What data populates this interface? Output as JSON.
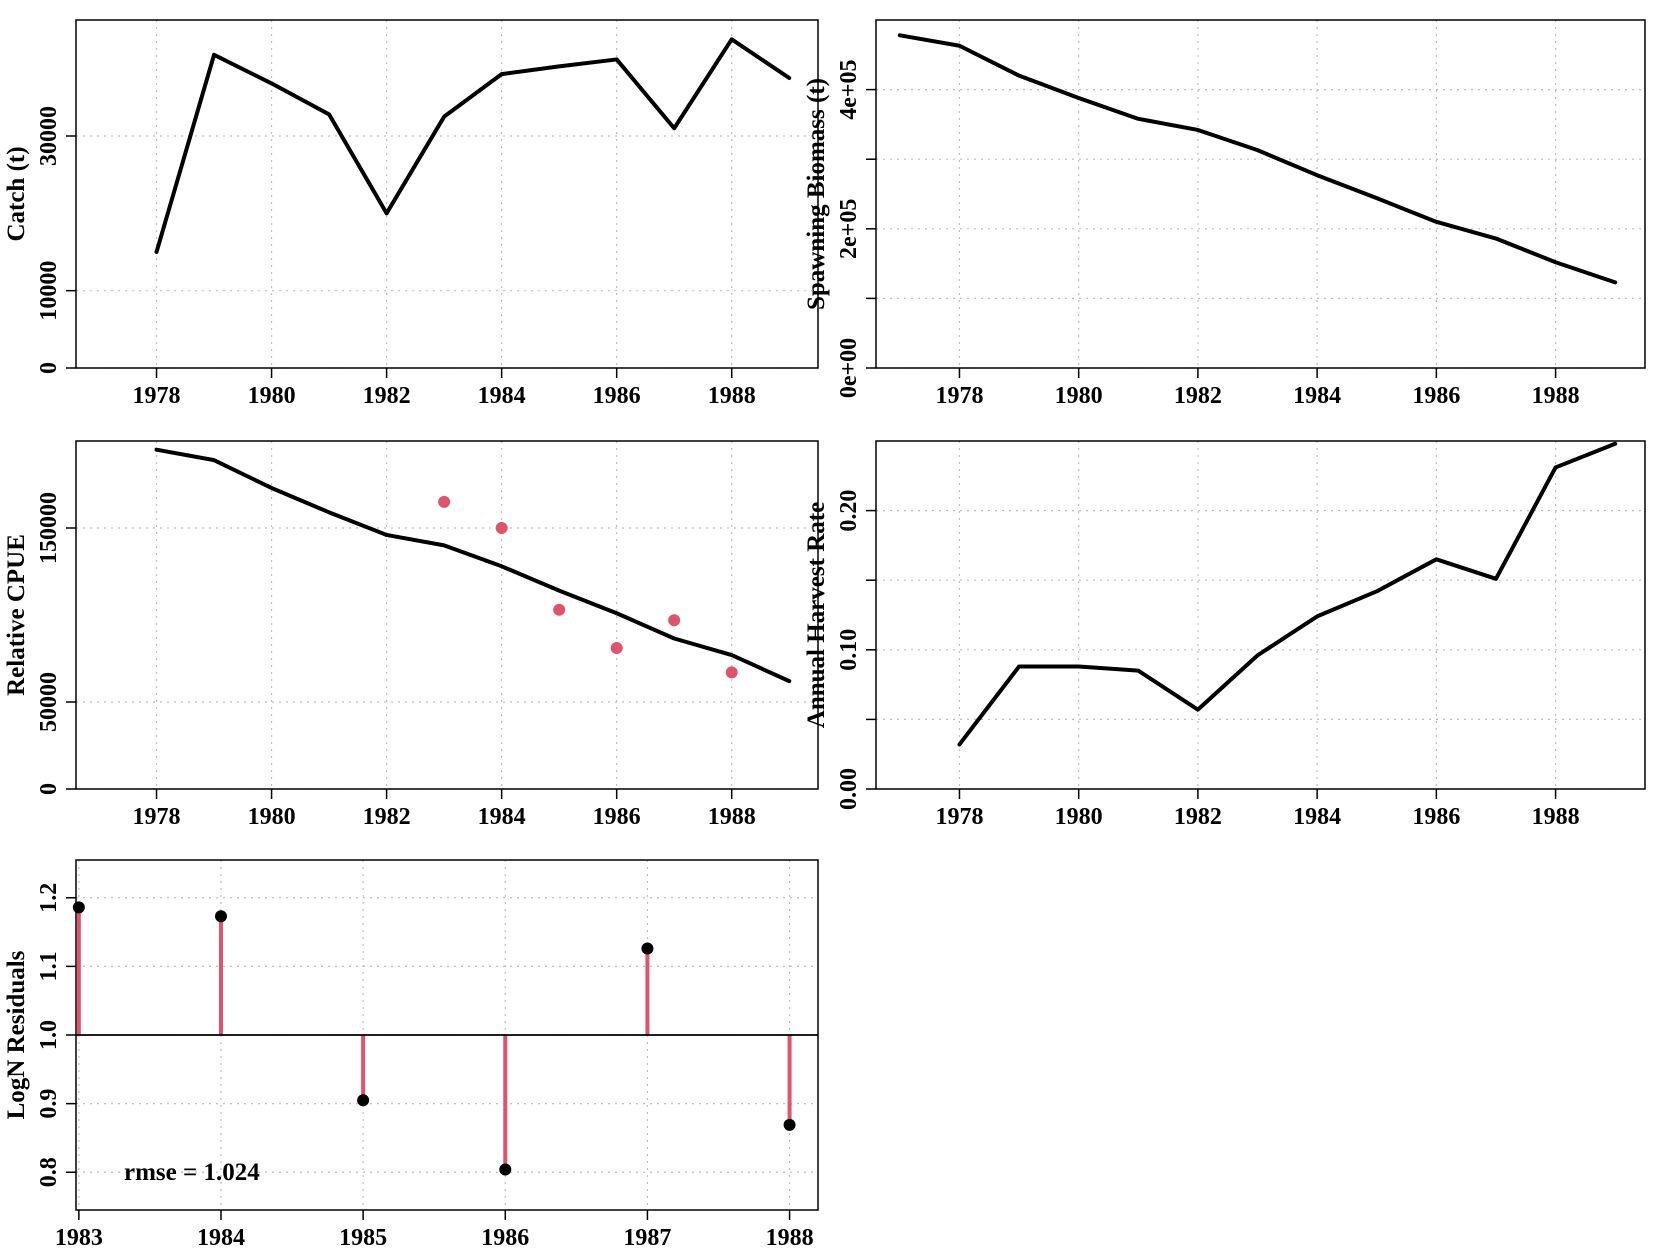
{
  "colors": {
    "line": "#000000",
    "accent": "#DF536B",
    "grid": "#BEBEBE",
    "point": "#000000"
  },
  "chart_data": [
    {
      "id": "catch",
      "type": "line",
      "ylabel": "Catch (t)",
      "xlabel": "",
      "title": "",
      "x": [
        1978,
        1979,
        1980,
        1981,
        1982,
        1983,
        1984,
        1985,
        1986,
        1987,
        1988,
        1989
      ],
      "series": [
        {
          "values": [
            15000,
            40500,
            36800,
            32800,
            20000,
            32500,
            38000,
            39000,
            39900,
            31000,
            42500,
            37500
          ]
        }
      ],
      "xlim": [
        1976.6,
        1989.5
      ],
      "ylim": [
        0,
        45000
      ],
      "xticks": [
        1978,
        1980,
        1982,
        1984,
        1986,
        1988
      ],
      "yticks": [
        0,
        10000,
        30000
      ],
      "ytick_labels": [
        "0",
        "10000",
        "30000"
      ],
      "grid": true
    },
    {
      "id": "spawning-biomass",
      "type": "line",
      "ylabel": "Spawning Biomass (t)",
      "xlabel": "",
      "title": "",
      "x": [
        1977,
        1978,
        1979,
        1980,
        1981,
        1982,
        1983,
        1984,
        1985,
        1986,
        1987,
        1988,
        1989
      ],
      "series": [
        {
          "values": [
            478000,
            463000,
            420000,
            388000,
            358000,
            342000,
            313000,
            277000,
            244000,
            210000,
            186000,
            152000,
            123000
          ]
        }
      ],
      "xlim": [
        1976.6,
        1989.5
      ],
      "ylim": [
        0,
        500000
      ],
      "xticks": [
        1978,
        1980,
        1982,
        1984,
        1986,
        1988
      ],
      "yticks": [
        0,
        100000,
        200000,
        300000,
        400000
      ],
      "ytick_labels": [
        "0e+00",
        "",
        "2e+05",
        "",
        "4e+05"
      ],
      "grid": true
    },
    {
      "id": "relative-cpue",
      "type": "line",
      "ylabel": "Relative CPUE",
      "xlabel": "",
      "title": "",
      "x": [
        1978,
        1979,
        1980,
        1981,
        1982,
        1983,
        1984,
        1985,
        1986,
        1987,
        1988,
        1989
      ],
      "series": [
        {
          "type": "line",
          "values": [
            195000,
            189000,
            173000,
            159000,
            146000,
            140000,
            128000,
            114000,
            101000,
            86500,
            77000,
            62000
          ]
        },
        {
          "type": "scatter",
          "x": [
            1983,
            1984,
            1985,
            1986,
            1987,
            1988
          ],
          "values": [
            165000,
            150000,
            103000,
            81000,
            97000,
            67000
          ]
        }
      ],
      "xlim": [
        1976.6,
        1989.5
      ],
      "ylim": [
        0,
        200000
      ],
      "xticks": [
        1978,
        1980,
        1982,
        1984,
        1986,
        1988
      ],
      "yticks": [
        0,
        50000,
        150000
      ],
      "ytick_labels": [
        "0",
        "50000",
        "150000"
      ],
      "grid": true
    },
    {
      "id": "harvest-rate",
      "type": "line",
      "ylabel": "Annual Harvest Rate",
      "xlabel": "",
      "title": "",
      "x": [
        1978,
        1979,
        1980,
        1981,
        1982,
        1983,
        1984,
        1985,
        1986,
        1987,
        1988,
        1989
      ],
      "series": [
        {
          "values": [
            0.032,
            0.088,
            0.088,
            0.085,
            0.057,
            0.096,
            0.124,
            0.142,
            0.165,
            0.151,
            0.231,
            0.248
          ]
        }
      ],
      "xlim": [
        1976.6,
        1989.5
      ],
      "ylim": [
        0,
        0.25
      ],
      "xticks": [
        1978,
        1980,
        1982,
        1984,
        1986,
        1988
      ],
      "yticks": [
        0,
        0.05,
        0.1,
        0.15,
        0.2
      ],
      "ytick_labels": [
        "0.00",
        "",
        "0.10",
        "",
        "0.20"
      ],
      "grid": true
    },
    {
      "id": "logn-residuals",
      "type": "scatter",
      "ylabel": "LogN Residuals",
      "xlabel": "",
      "title": "",
      "x": [
        1983,
        1984,
        1985,
        1986,
        1987,
        1988
      ],
      "series": [
        {
          "values": [
            1.186,
            1.173,
            0.905,
            0.804,
            1.126,
            0.869
          ]
        }
      ],
      "baseline": 1.0,
      "annotation": "rmse = 1.024",
      "xlim": [
        1982.98,
        1988.2
      ],
      "ylim": [
        0.745,
        1.255
      ],
      "xticks": [
        1983,
        1984,
        1985,
        1986,
        1987,
        1988
      ],
      "yticks": [
        0.8,
        0.9,
        1.0,
        1.1,
        1.2
      ],
      "ytick_labels": [
        "0.8",
        "0.9",
        "1.0",
        "1.1",
        "1.2"
      ],
      "grid": true
    }
  ]
}
